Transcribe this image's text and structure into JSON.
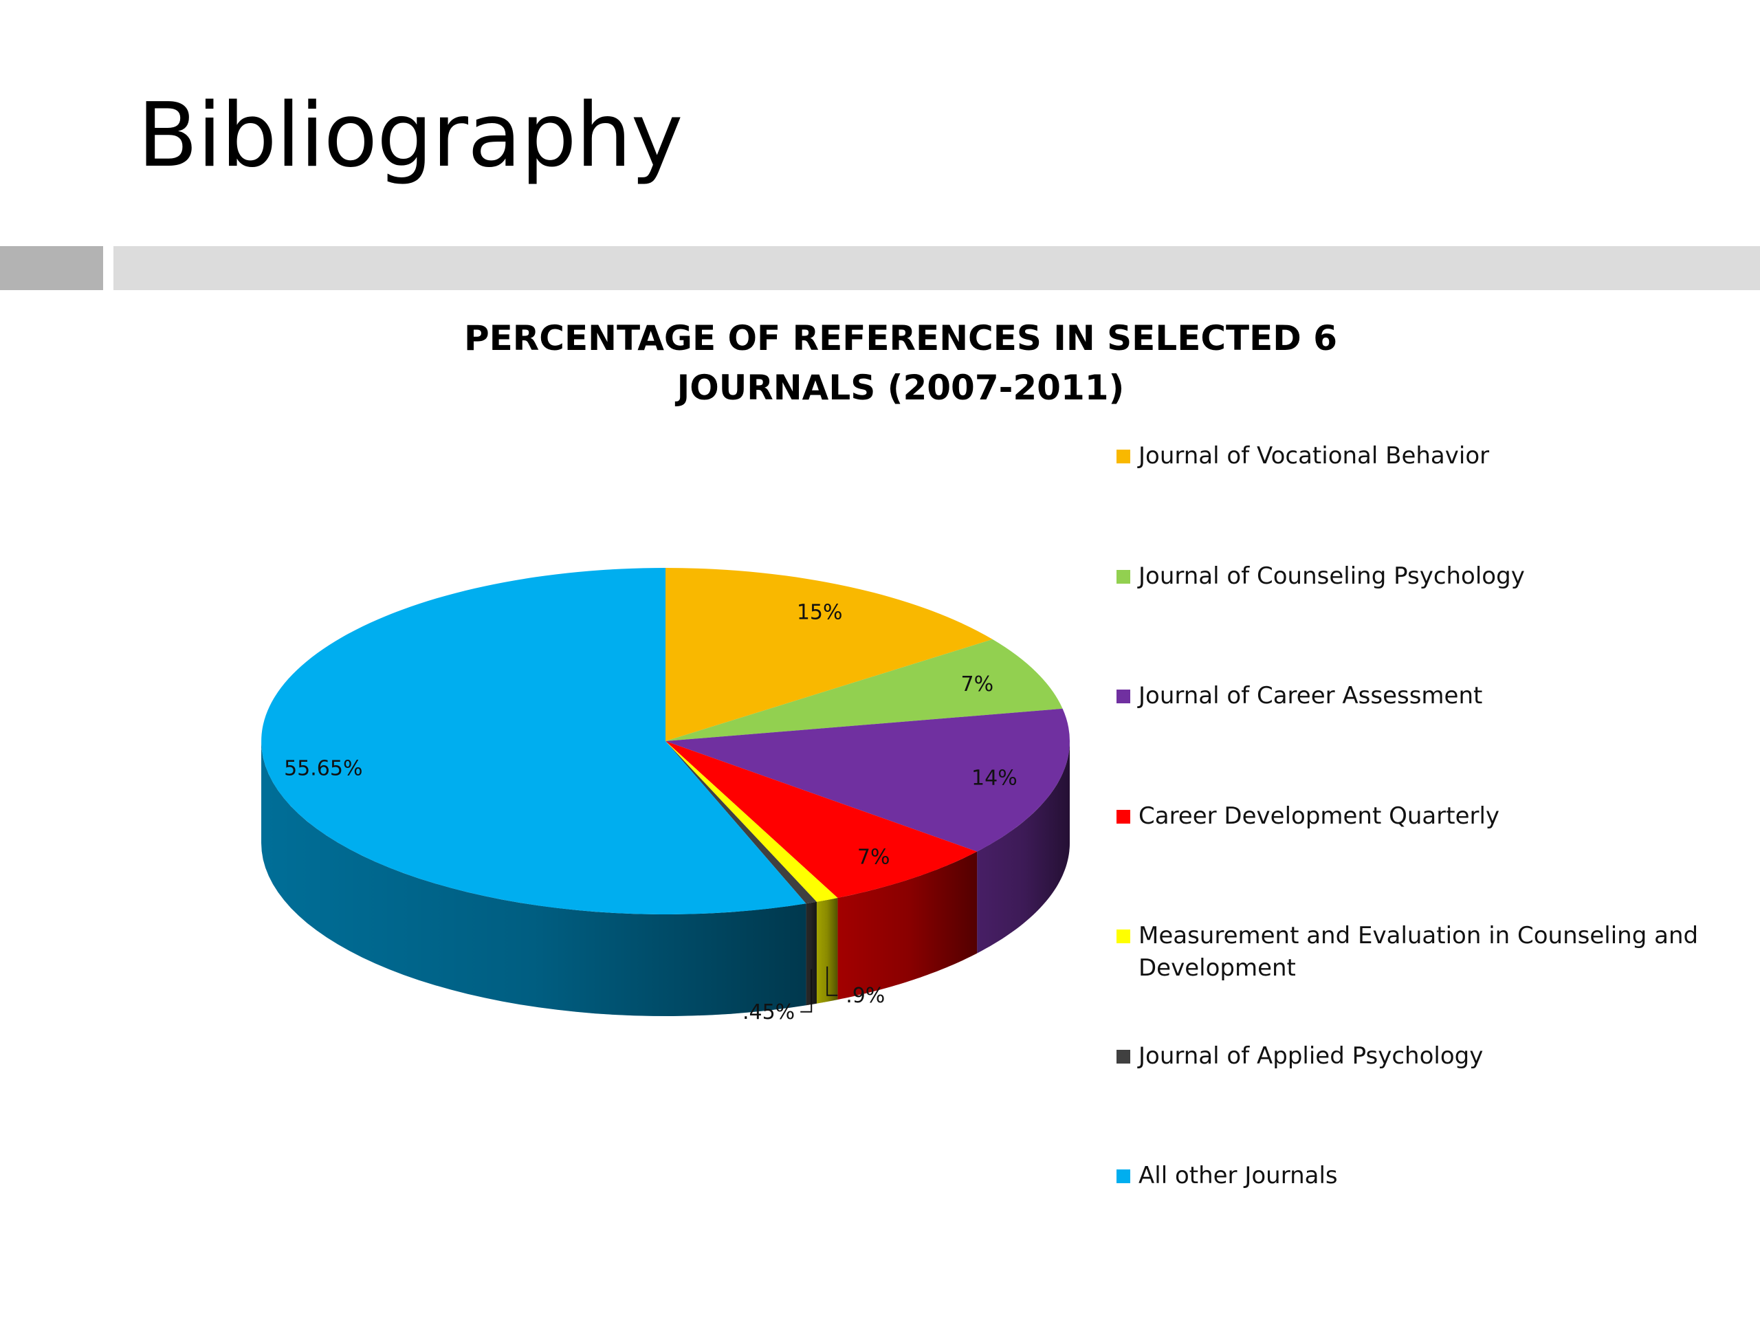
{
  "slide": {
    "title": "Bibliography"
  },
  "chart_data": {
    "type": "pie",
    "title_lines": [
      "PERCENTAGE OF REFERENCES IN SELECTED 6",
      "JOURNALS (2007-2011)"
    ],
    "slices": [
      {
        "name": "Journal of Vocational Behavior",
        "value": 15,
        "label": "15%",
        "color": "#F9B800"
      },
      {
        "name": "Journal of Counseling Psychology",
        "value": 7,
        "label": "7%",
        "color": "#92D050"
      },
      {
        "name": "Journal of Career Assessment",
        "value": 14,
        "label": "14%",
        "color": "#7030A0"
      },
      {
        "name": "Career Development Quarterly",
        "value": 7,
        "label": "7%",
        "color": "#FF0000"
      },
      {
        "name": "Measurement and Evaluation in Counseling and Development",
        "value": 0.9,
        "label": ".9%",
        "color": "#FFFF00"
      },
      {
        "name": "Journal of Applied Psychology",
        "value": 0.45,
        "label": ".45%",
        "color": "#404040"
      },
      {
        "name": "All other Journals",
        "value": 55.65,
        "label": "55.65%",
        "color": "#00AEEF"
      }
    ],
    "legend_position": "right",
    "style": "3d"
  }
}
